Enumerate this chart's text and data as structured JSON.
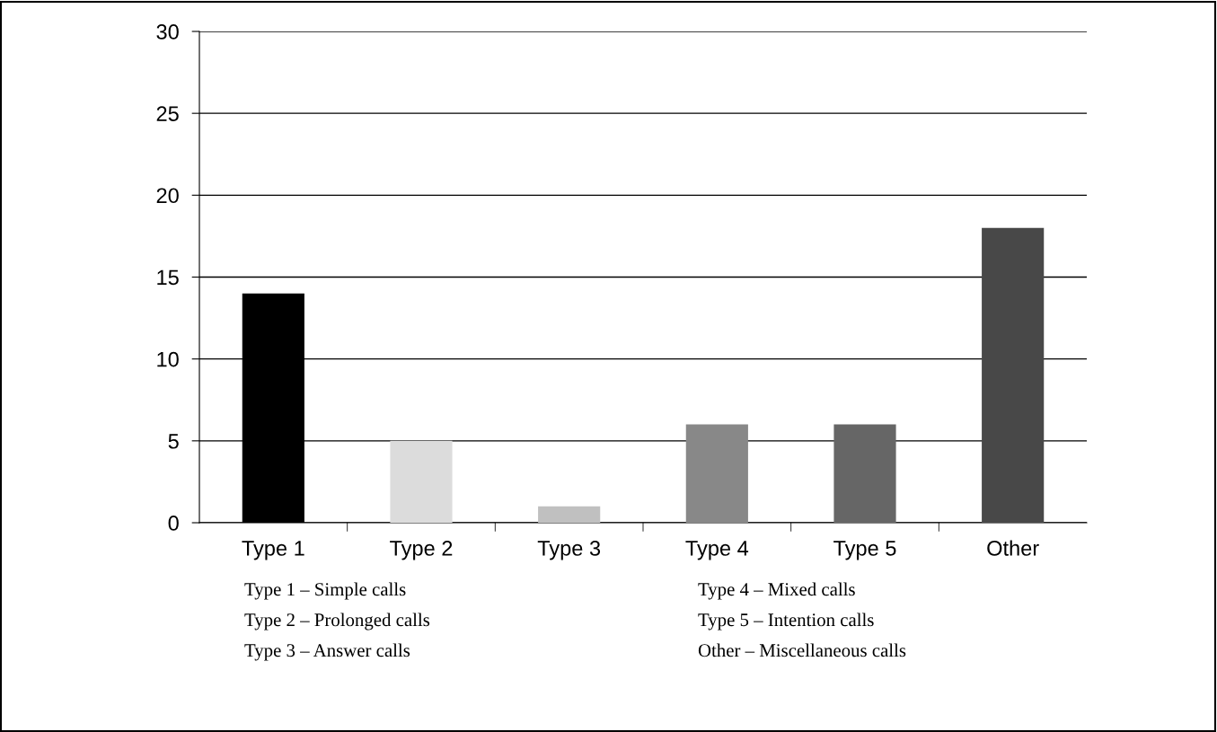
{
  "chart_data": {
    "type": "bar",
    "categories": [
      "Type 1",
      "Type 2",
      "Type 3",
      "Type 4",
      "Type 5",
      "Other"
    ],
    "values": [
      14,
      5,
      1,
      6,
      6,
      18
    ],
    "colors": [
      "#000000",
      "#dcdcdc",
      "#c0c0c0",
      "#888888",
      "#666666",
      "#484848"
    ],
    "ylim": [
      0,
      30
    ],
    "yticks": [
      0,
      5,
      10,
      15,
      20,
      25,
      30
    ],
    "grid": "y",
    "legend": false,
    "annotations": [
      "Type 1 – Simple calls",
      "Type 2 – Prolonged calls",
      "Type 3 – Answer calls",
      "Type 4 – Mixed calls",
      "Type 5 – Intention calls",
      "Other – Miscellaneous calls"
    ]
  }
}
